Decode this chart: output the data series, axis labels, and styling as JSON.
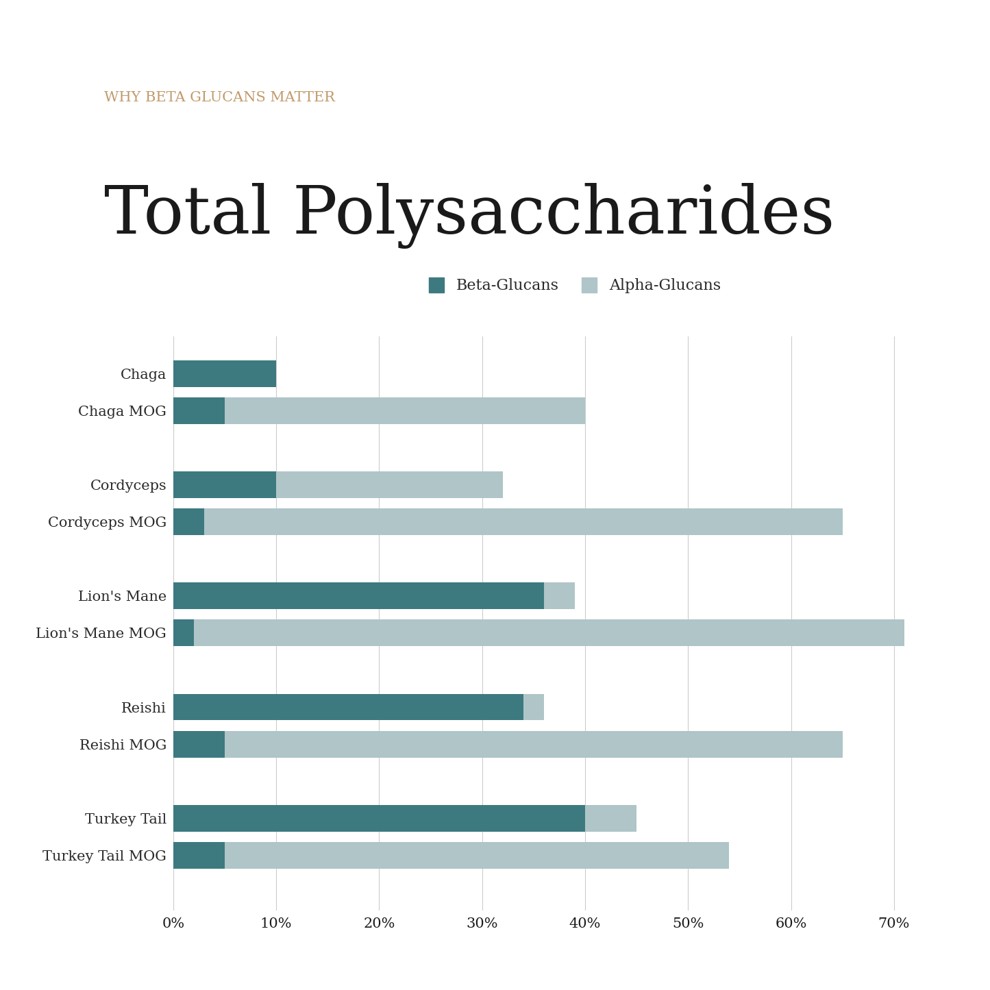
{
  "subtitle": "WHY BETA GLUCANS MATTER",
  "title": "Total Polysaccharides",
  "subtitle_color": "#C19A6B",
  "title_color": "#1a1a1a",
  "categories": [
    "Chaga",
    "Chaga MOG",
    "Cordyceps",
    "Cordyceps MOG",
    "Lion's Mane",
    "Lion's Mane MOG",
    "Reishi",
    "Reishi MOG",
    "Turkey Tail",
    "Turkey Tail MOG"
  ],
  "beta_glucans": [
    10.0,
    5.0,
    10.0,
    3.0,
    36.0,
    2.0,
    34.0,
    5.0,
    40.0,
    5.0
  ],
  "alpha_glucans": [
    0.0,
    35.0,
    22.0,
    62.0,
    3.0,
    69.0,
    2.0,
    60.0,
    5.0,
    49.0
  ],
  "beta_color": "#3d7a80",
  "alpha_color": "#afc5c8",
  "background_color": "#ffffff",
  "xlim": [
    0,
    75
  ],
  "xticks": [
    0,
    10,
    20,
    30,
    40,
    50,
    60,
    70
  ],
  "xtick_labels": [
    "0%",
    "10%",
    "20%",
    "30%",
    "40%",
    "50%",
    "60%",
    "70%"
  ],
  "legend_labels": [
    "Beta-Glucans",
    "Alpha-Glucans"
  ],
  "group_gaps": [
    0,
    1,
    3,
    4,
    6,
    7,
    9,
    10,
    12,
    13
  ],
  "bar_height": 0.72
}
